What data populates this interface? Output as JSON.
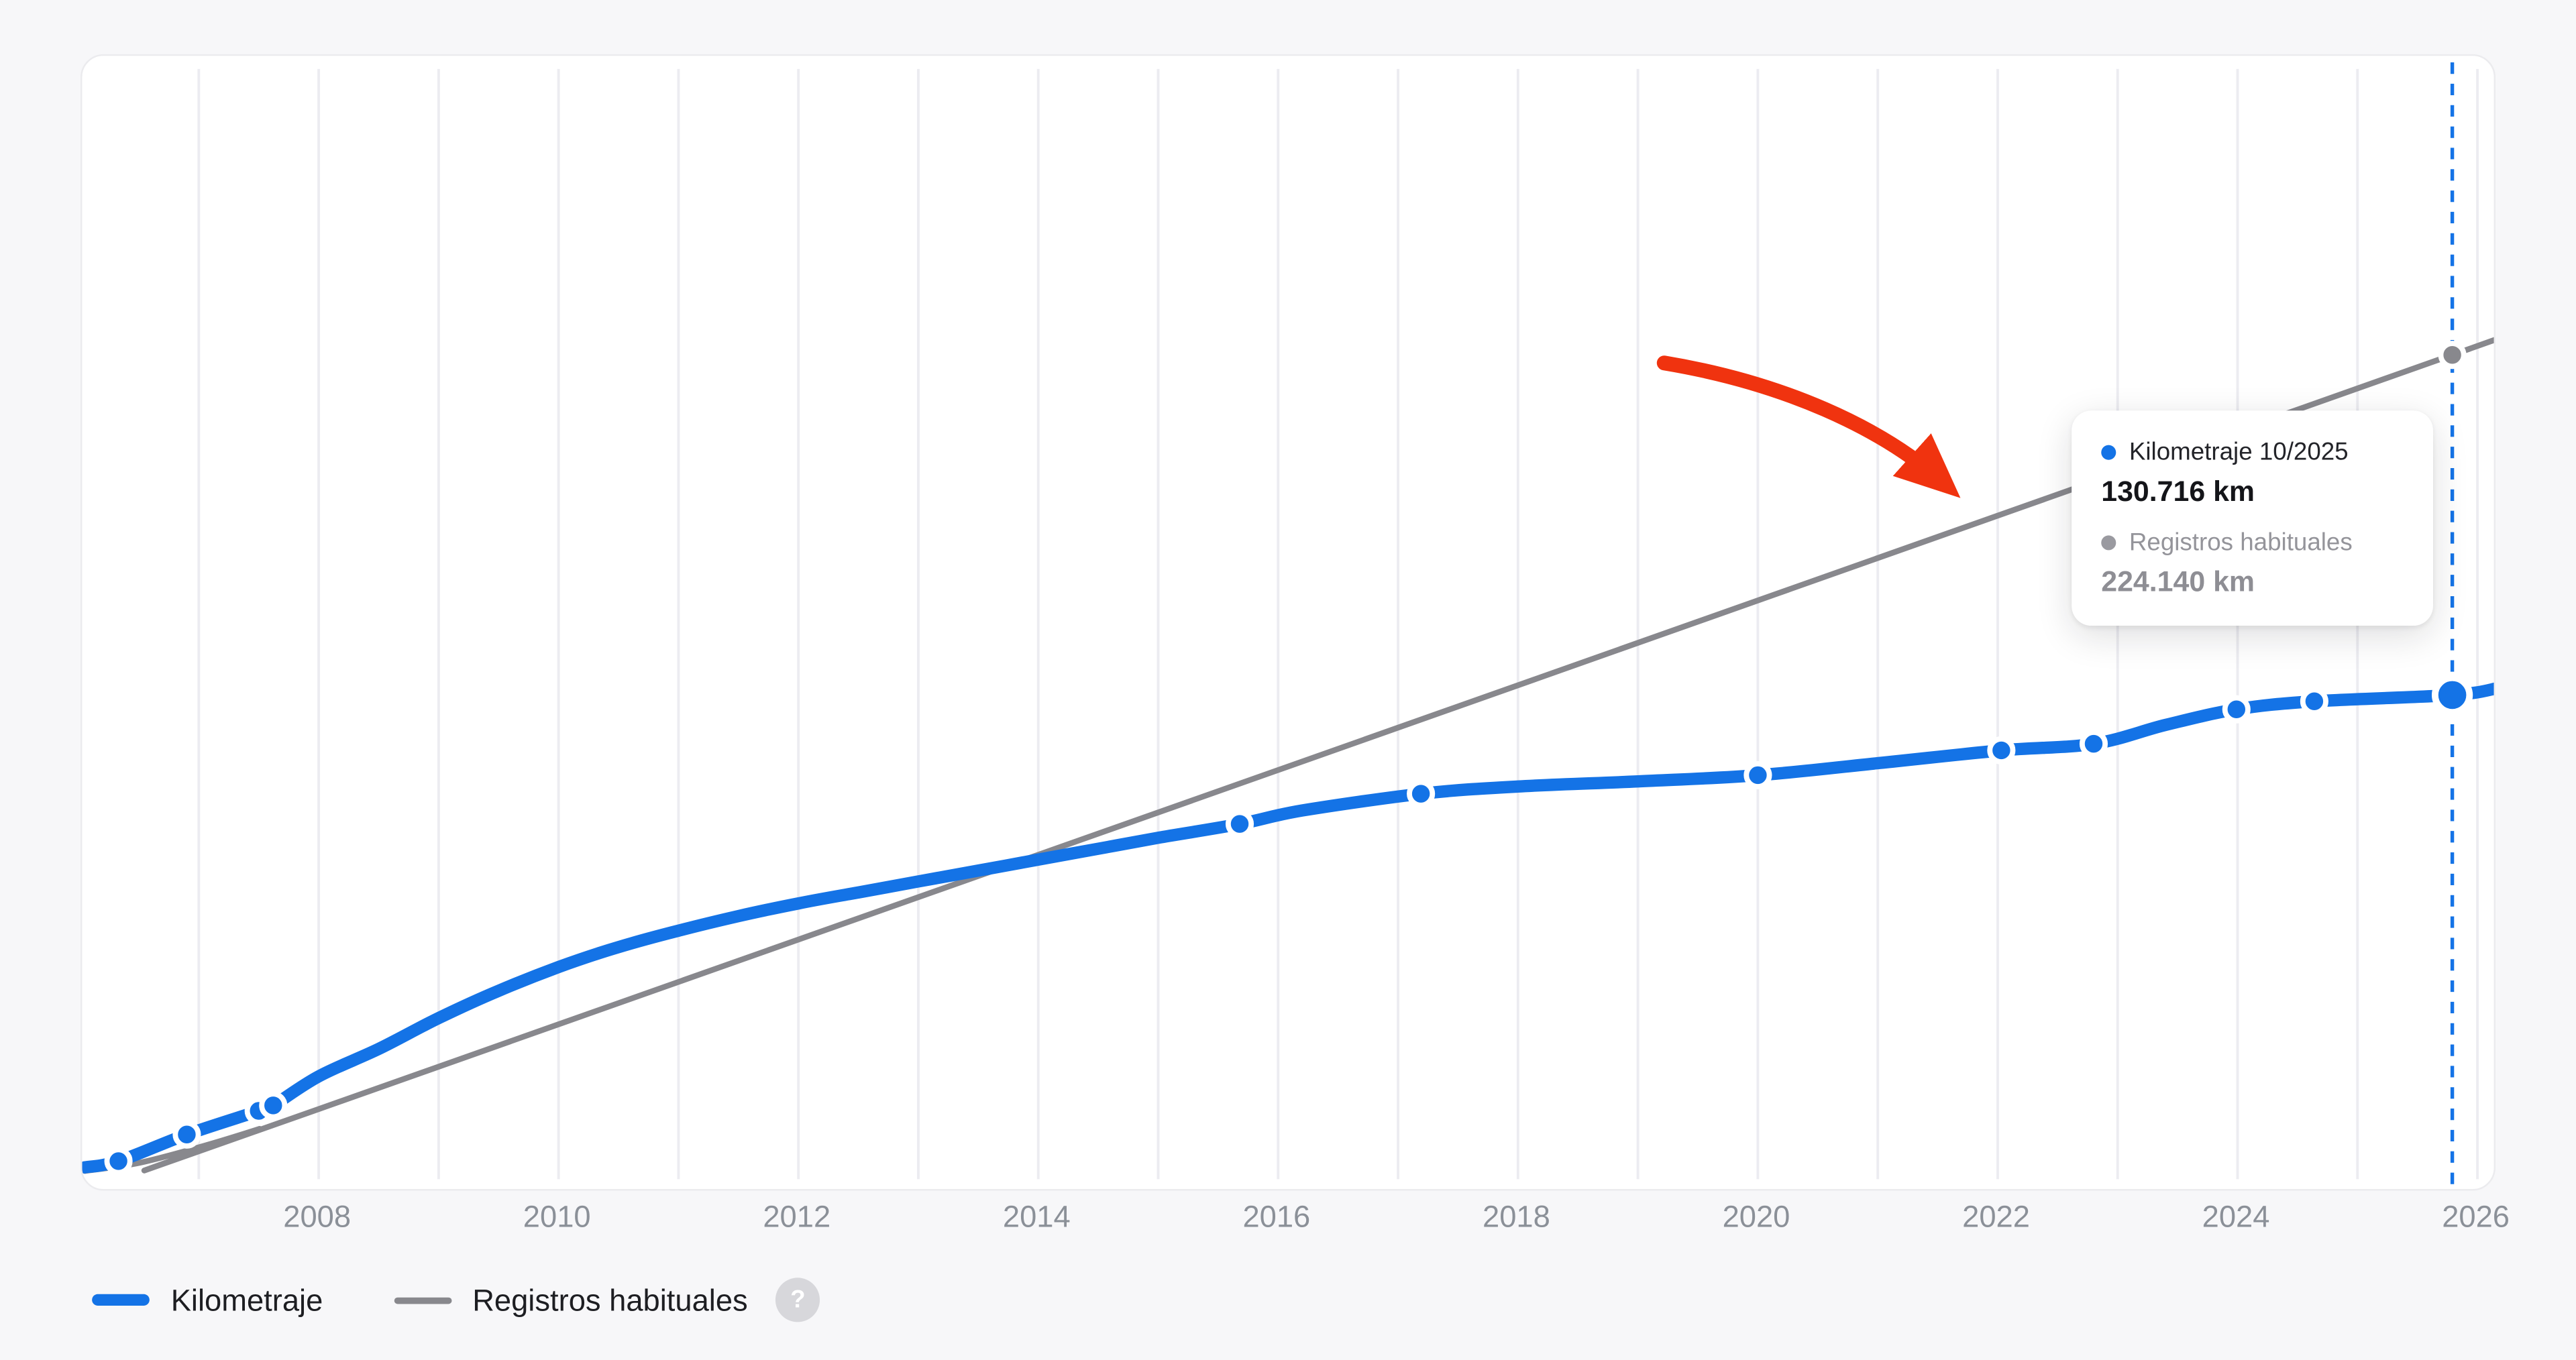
{
  "chart_data": {
    "type": "line",
    "title": "",
    "xlabel": "",
    "ylabel": "",
    "x_axis": {
      "tick_years": [
        2008,
        2010,
        2012,
        2014,
        2016,
        2018,
        2020,
        2022,
        2024,
        2026
      ],
      "tick_labels": [
        "2008",
        "2010",
        "2012",
        "2014",
        "2016",
        "2018",
        "2020",
        "2022",
        "2024",
        "2026"
      ],
      "gridline_years": [
        2007,
        2008,
        2009,
        2010,
        2011,
        2012,
        2013,
        2014,
        2015,
        2016,
        2017,
        2018,
        2019,
        2020,
        2021,
        2022,
        2023,
        2024,
        2025,
        2026
      ],
      "range_years": [
        2006.0,
        2026.17
      ],
      "grid": "vertical-only"
    },
    "y_axis": {
      "unit": "km",
      "range_km": [
        0,
        306000
      ],
      "labels_visible": false
    },
    "cursor": {
      "x": 2025.79,
      "label": "10/2025",
      "color": "#1473e6",
      "style": "dashed"
    },
    "series": [
      {
        "name": "Kilometraje",
        "color": "#1473e6",
        "stroke_width": 7.5,
        "points": [
          [
            2006.05,
            1000
          ],
          [
            2006.33,
            2700
          ],
          [
            2006.9,
            10000
          ],
          [
            2007.5,
            16500
          ],
          [
            2007.62,
            18000
          ],
          [
            2008,
            26000
          ],
          [
            2008.5,
            33500
          ],
          [
            2009,
            42000
          ],
          [
            2009.5,
            49500
          ],
          [
            2010,
            56000
          ],
          [
            2010.5,
            61500
          ],
          [
            2011,
            66000
          ],
          [
            2011.5,
            70000
          ],
          [
            2012,
            73500
          ],
          [
            2012.5,
            76500
          ],
          [
            2013,
            79500
          ],
          [
            2013.5,
            82500
          ],
          [
            2014,
            85500
          ],
          [
            2014.5,
            88500
          ],
          [
            2015,
            91500
          ],
          [
            2015.68,
            95300
          ],
          [
            2016.2,
            99000
          ],
          [
            2017.19,
            103600
          ],
          [
            2018,
            105600
          ],
          [
            2019,
            107000
          ],
          [
            2020,
            108700
          ],
          [
            2021,
            112000
          ],
          [
            2022.03,
            115500
          ],
          [
            2022.8,
            117300
          ],
          [
            2023.4,
            122500
          ],
          [
            2023.99,
            126800
          ],
          [
            2024.64,
            129000
          ],
          [
            2025.79,
            130716
          ],
          [
            2026.17,
            132600
          ]
        ],
        "markers": [
          [
            2006.33,
            2700
          ],
          [
            2006.9,
            10000
          ],
          [
            2007.5,
            16500
          ],
          [
            2007.62,
            18000
          ],
          [
            2015.68,
            95300
          ],
          [
            2017.19,
            103600
          ],
          [
            2020,
            108700
          ],
          [
            2022.03,
            115500
          ],
          [
            2022.8,
            117300
          ],
          [
            2023.99,
            126800
          ],
          [
            2024.64,
            129000
          ]
        ],
        "end_marker": [
          2025.79,
          130716
        ]
      },
      {
        "name": "Registros habituales",
        "color": "#88888d",
        "stroke_width": 3.5,
        "points": [
          [
            2006.05,
            0
          ],
          [
            2006.5,
            2200
          ],
          [
            2007,
            6500
          ],
          [
            2007.5,
            11500
          ],
          [
            2008,
            17000
          ],
          [
            2025.79,
            224140
          ],
          [
            2026.17,
            229000
          ]
        ],
        "markers": [],
        "end_marker": [
          2025.79,
          224140
        ]
      }
    ],
    "annotation_arrow": {
      "color": "#f0330f",
      "points_at": "Registros habituales line"
    },
    "legend_position": "bottom-left"
  },
  "tooltip": {
    "series1_label": "Kilometraje 10/2025",
    "series1_value": "130.716 km",
    "series2_label": "Registros habituales",
    "series2_value": "224.140 km"
  },
  "legend": {
    "item1": "Kilometraje",
    "item2": "Registros habituales",
    "help": "?"
  },
  "colors": {
    "primary_blue": "#1473e6",
    "line_gray": "#88888d",
    "grid": "#ececf1",
    "arrow_red": "#f0330f",
    "page_bg": "#f7f7f9",
    "card_bg": "#ffffff"
  }
}
